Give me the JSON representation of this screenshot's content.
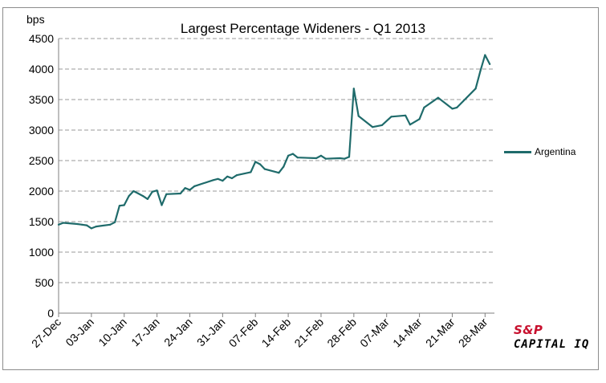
{
  "chart_data": {
    "type": "line",
    "title": "Largest Percentage Wideners - Q1 2013",
    "ylabel": "bps",
    "xlabel": "",
    "ylim": [
      0,
      4500
    ],
    "y_ticks": [
      0,
      500,
      1000,
      1500,
      2000,
      2500,
      3000,
      3500,
      4000,
      4500
    ],
    "x_ticks": [
      "27-Dec",
      "03-Jan",
      "10-Jan",
      "17-Jan",
      "24-Jan",
      "31-Jan",
      "07-Feb",
      "14-Feb",
      "21-Feb",
      "28-Feb",
      "07-Mar",
      "14-Mar",
      "21-Mar",
      "28-Mar"
    ],
    "grid": "horizontal dashed",
    "legend_position": "right",
    "series": [
      {
        "name": "Argentina",
        "color": "#1f6b6b",
        "points": [
          [
            "2012-12-27",
            1450
          ],
          [
            "2012-12-28",
            1480
          ],
          [
            "2012-12-31",
            1460
          ],
          [
            "2013-01-01",
            1450
          ],
          [
            "2013-01-02",
            1440
          ],
          [
            "2013-01-03",
            1390
          ],
          [
            "2013-01-04",
            1420
          ],
          [
            "2013-01-07",
            1450
          ],
          [
            "2013-01-08",
            1490
          ],
          [
            "2013-01-09",
            1760
          ],
          [
            "2013-01-10",
            1770
          ],
          [
            "2013-01-11",
            1920
          ],
          [
            "2013-01-12",
            2000
          ],
          [
            "2013-01-13",
            1960
          ],
          [
            "2013-01-14",
            1920
          ],
          [
            "2013-01-15",
            1870
          ],
          [
            "2013-01-16",
            1990
          ],
          [
            "2013-01-17",
            2010
          ],
          [
            "2013-01-18",
            1770
          ],
          [
            "2013-01-19",
            1950
          ],
          [
            "2013-01-22",
            1960
          ],
          [
            "2013-01-23",
            2050
          ],
          [
            "2013-01-24",
            2020
          ],
          [
            "2013-01-25",
            2080
          ],
          [
            "2013-01-29",
            2180
          ],
          [
            "2013-01-30",
            2200
          ],
          [
            "2013-01-31",
            2170
          ],
          [
            "2013-02-01",
            2240
          ],
          [
            "2013-02-02",
            2210
          ],
          [
            "2013-02-03",
            2260
          ],
          [
            "2013-02-06",
            2310
          ],
          [
            "2013-02-07",
            2480
          ],
          [
            "2013-02-08",
            2440
          ],
          [
            "2013-02-09",
            2360
          ],
          [
            "2013-02-12",
            2300
          ],
          [
            "2013-02-13",
            2400
          ],
          [
            "2013-02-14",
            2580
          ],
          [
            "2013-02-15",
            2610
          ],
          [
            "2013-02-16",
            2550
          ],
          [
            "2013-02-20",
            2540
          ],
          [
            "2013-02-21",
            2580
          ],
          [
            "2013-02-22",
            2530
          ],
          [
            "2013-02-25",
            2540
          ],
          [
            "2013-02-26",
            2530
          ],
          [
            "2013-02-27",
            2560
          ],
          [
            "2013-02-28",
            3680
          ],
          [
            "2013-03-01",
            3230
          ],
          [
            "2013-03-04",
            3050
          ],
          [
            "2013-03-06",
            3080
          ],
          [
            "2013-03-08",
            3220
          ],
          [
            "2013-03-11",
            3240
          ],
          [
            "2013-03-12",
            3090
          ],
          [
            "2013-03-14",
            3180
          ],
          [
            "2013-03-15",
            3370
          ],
          [
            "2013-03-18",
            3530
          ],
          [
            "2013-03-21",
            3350
          ],
          [
            "2013-03-22",
            3370
          ],
          [
            "2013-03-26",
            3680
          ],
          [
            "2013-03-27",
            3970
          ],
          [
            "2013-03-28",
            4230
          ],
          [
            "2013-03-29",
            4080
          ]
        ]
      }
    ]
  },
  "legend": {
    "label": "Argentina"
  },
  "logo": {
    "line1": "S&P",
    "line2": "CAPITAL IQ"
  }
}
